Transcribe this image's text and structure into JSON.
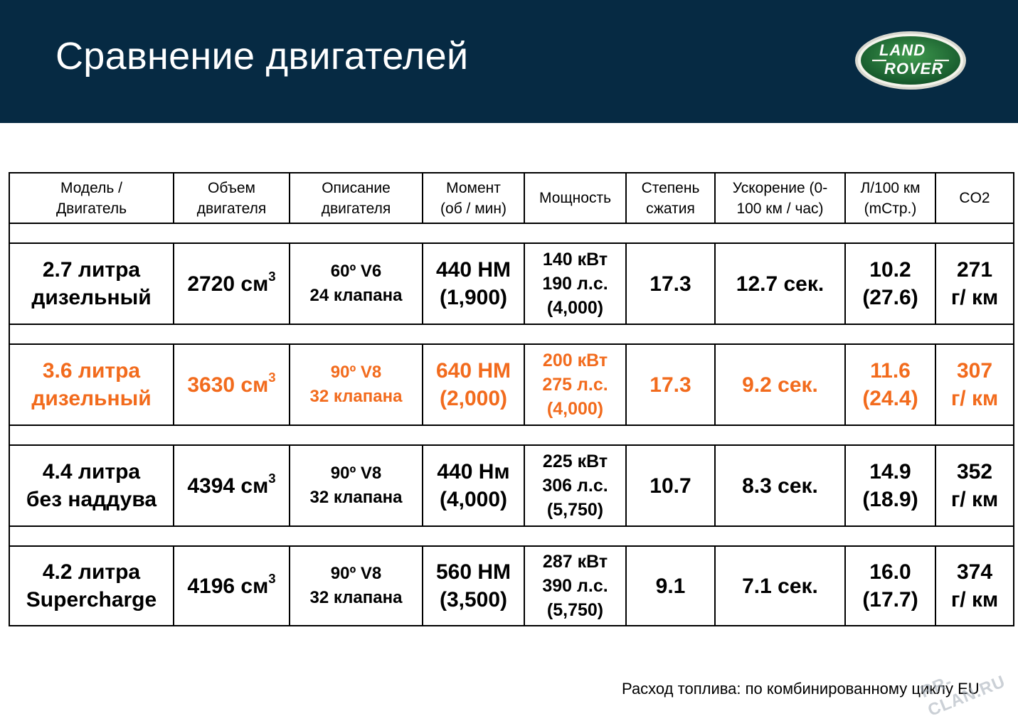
{
  "slide": {
    "title": "Сравнение двигателей",
    "logo_text_top": "LAND",
    "logo_text_bottom": "ROVER",
    "footnote": "Расход топлива: по комбинированному циклу EU",
    "watermark": "RR-CLAN.RU",
    "colors": {
      "header_bg": "#062a43",
      "highlight": "#f26b1d",
      "logo_green": "#1e6b2e"
    }
  },
  "table": {
    "headers": [
      {
        "l1": "Модель /",
        "l2": "Двигатель"
      },
      {
        "l1": "Объем",
        "l2": "двигателя"
      },
      {
        "l1": "Описание",
        "l2": "двигателя"
      },
      {
        "l1": "Момент",
        "l2": "(об / мин)"
      },
      {
        "l1": "Мощность",
        "l2": ""
      },
      {
        "l1": "Степень",
        "l2": "сжатия"
      },
      {
        "l1": "Ускорение (0-",
        "l2": "100 км / час)"
      },
      {
        "l1": "Л/100 км",
        "l2": "(mСтр.)"
      },
      {
        "l1": "CO2",
        "l2": ""
      }
    ],
    "rows": [
      {
        "model": [
          "2.7 литра",
          "дизельный"
        ],
        "volume": "2720 см",
        "volume_sup": "3",
        "description": [
          "60º V6",
          "24 клапана"
        ],
        "torque": [
          "440 НМ",
          "(1,900)"
        ],
        "power": [
          "140 кВт",
          "190 л.с.",
          "(4,000)"
        ],
        "compression": "17.3",
        "acceleration": "12.7 сек.",
        "consumption": [
          "10.2",
          "(27.6)"
        ],
        "co2": [
          "271",
          "г/ км"
        ]
      },
      {
        "model": [
          "3.6 литра",
          "дизельный"
        ],
        "volume": "3630 см",
        "volume_sup": "3",
        "description": [
          "90º V8",
          "32 клапана"
        ],
        "torque": [
          "640 НМ",
          "(2,000)"
        ],
        "power": [
          "200 кВт",
          "275 л.с.",
          "(4,000)"
        ],
        "compression": "17.3",
        "acceleration": "9.2 сек.",
        "consumption": [
          "11.6",
          "(24.4)"
        ],
        "co2": [
          "307",
          "г/ км"
        ]
      },
      {
        "model": [
          "4.4 литра",
          "без наддува"
        ],
        "volume": "4394 см",
        "volume_sup": "3",
        "description": [
          "90º V8",
          "32 клапана"
        ],
        "torque": [
          "440 Нм",
          " (4,000)"
        ],
        "power": [
          "225 кВт",
          "306 л.с.",
          "(5,750)"
        ],
        "compression": "10.7",
        "acceleration": "8.3 сек.",
        "consumption": [
          "14.9",
          "(18.9)"
        ],
        "co2": [
          "352",
          "г/ км"
        ]
      },
      {
        "model": [
          "4.2 литра",
          "Supercharge"
        ],
        "volume": "4196 см",
        "volume_sup": "3",
        "description": [
          "90º V8",
          "32 клапана"
        ],
        "torque": [
          "560 НМ",
          "(3,500)"
        ],
        "power": [
          "287 кВт",
          "390 л.с.",
          "(5,750)"
        ],
        "compression": "9.1",
        "acceleration": "7.1 сек.",
        "consumption": [
          "16.0",
          "(17.7)"
        ],
        "co2": [
          "374",
          "г/ км"
        ]
      }
    ]
  }
}
